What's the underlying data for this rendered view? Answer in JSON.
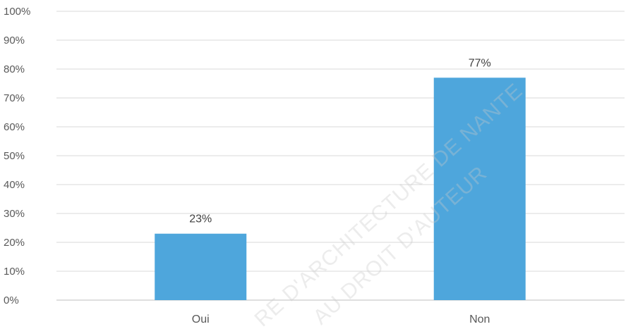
{
  "chart_data": {
    "type": "bar",
    "categories": [
      "Oui",
      "Non"
    ],
    "values": [
      23,
      77
    ],
    "data_labels": [
      "23%",
      "77%"
    ],
    "yticks": [
      "0%",
      "10%",
      "20%",
      "30%",
      "40%",
      "50%",
      "60%",
      "70%",
      "80%",
      "90%",
      "100%"
    ],
    "ylim": [
      0,
      100
    ],
    "grid": true,
    "bar_color": "#4ea6dc"
  },
  "watermark": {
    "line1": "RE D'ARCHITECTURE DE NANTE",
    "line2": "AU DROIT D'AUTEUR"
  }
}
